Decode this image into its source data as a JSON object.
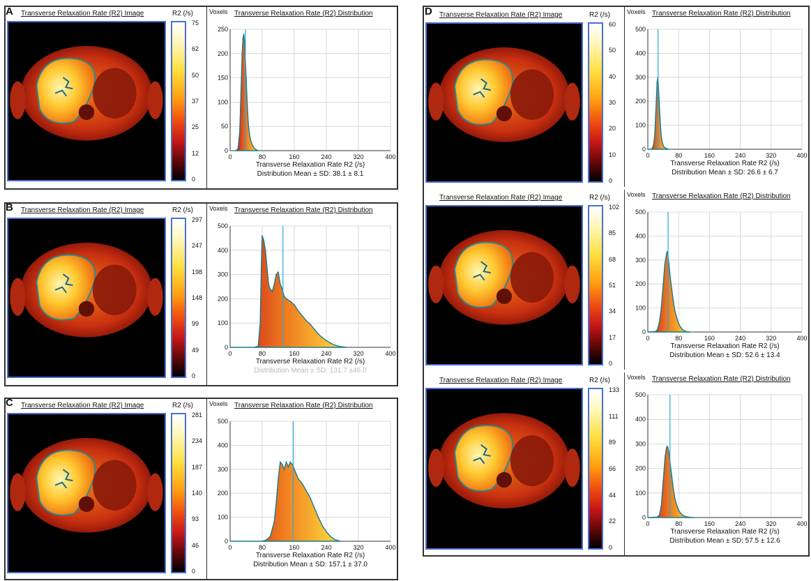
{
  "figure": {
    "labels": {
      "A": "A",
      "B": "B",
      "C": "C",
      "D": "D"
    },
    "image_title": "Transverse Relaxation Rate (R2) Image",
    "dist_title": "Transverse Relaxation Rate (R2) Distribution",
    "unit_label": "R2 (/s)",
    "voxels_label": "Voxels",
    "xlabel": "Transverse Relaxation Rate R2 (/s)"
  },
  "colors": {
    "mean_line": "#29a8e0",
    "hist_outline": "#1a7a8a",
    "frame_blue": "#4a6fd4"
  },
  "panels": [
    {
      "id": "A",
      "colorbar_ticks": [
        "75",
        "62",
        "50",
        "37",
        "25",
        "12",
        "0"
      ],
      "stat": "Distribution Mean ± SD: 38.1  ± 8.1",
      "stat_faded": false
    },
    {
      "id": "B",
      "colorbar_ticks": [
        "297",
        "247",
        "198",
        "148",
        "99",
        "49",
        "0"
      ],
      "stat": "Distribution Mean ± SD: 131.7 ±46.0",
      "stat_faded": true
    },
    {
      "id": "C",
      "colorbar_ticks": [
        "281",
        "234",
        "187",
        "140",
        "93",
        "46",
        "0"
      ],
      "stat": "Distribution Mean ± SD: 157.1 ± 37.0",
      "stat_faded": false
    },
    {
      "id": "D1",
      "colorbar_ticks": [
        "60",
        "50",
        "40",
        "30",
        "20",
        "10",
        "0"
      ],
      "stat": "Distribution Mean ± SD: 26.6  ± 6.7",
      "stat_faded": false
    },
    {
      "id": "D2",
      "colorbar_ticks": [
        "102",
        "85",
        "68",
        "51",
        "34",
        "17",
        "0"
      ],
      "stat": "Distribution Mean ± SD: 52.6  ± 13.4",
      "stat_faded": false
    },
    {
      "id": "D3",
      "colorbar_ticks": [
        "133",
        "111",
        "89",
        "66",
        "44",
        "22",
        "0"
      ],
      "stat": "Distribution Mean ± SD: 57.5  ± 12.6",
      "stat_faded": false
    }
  ],
  "chart_data": [
    {
      "type": "area",
      "panel": "A",
      "title": "Transverse Relaxation Rate (R2) Distribution",
      "xlabel": "Transverse Relaxation Rate R2 (/s)",
      "ylabel": "Voxels",
      "xlim": [
        0,
        400
      ],
      "ylim": [
        0,
        250
      ],
      "x_ticks": [
        0,
        80,
        160,
        240,
        320,
        400
      ],
      "y_ticks": [
        0,
        50,
        100,
        150,
        200,
        250
      ],
      "mean": 38.1,
      "sd": 8.1,
      "x": [
        15,
        20,
        24,
        27,
        30,
        32,
        34,
        36,
        38,
        40,
        42,
        44,
        46,
        50,
        55,
        60,
        65,
        70
      ],
      "y": [
        0,
        5,
        40,
        120,
        200,
        230,
        240,
        225,
        190,
        150,
        110,
        75,
        50,
        25,
        12,
        5,
        2,
        0
      ]
    },
    {
      "type": "area",
      "panel": "B",
      "title": "Transverse Relaxation Rate (R2) Distribution",
      "xlabel": "Transverse Relaxation Rate R2 (/s)",
      "ylabel": "Voxels",
      "xlim": [
        0,
        400
      ],
      "ylim": [
        0,
        500
      ],
      "x_ticks": [
        0,
        80,
        160,
        240,
        320,
        400
      ],
      "y_ticks": [
        0,
        100,
        200,
        300,
        400,
        500
      ],
      "mean": 131.7,
      "sd": 46.0,
      "x": [
        0,
        60,
        70,
        75,
        78,
        80,
        84,
        88,
        92,
        96,
        100,
        105,
        110,
        115,
        120,
        125,
        130,
        135,
        140,
        150,
        160,
        170,
        180,
        190,
        200,
        210,
        220,
        230,
        240,
        250,
        260,
        270,
        280,
        290
      ],
      "y": [
        0,
        0,
        5,
        100,
        350,
        460,
        440,
        400,
        330,
        260,
        240,
        230,
        260,
        300,
        310,
        260,
        240,
        210,
        200,
        190,
        175,
        150,
        130,
        110,
        95,
        75,
        55,
        40,
        28,
        18,
        10,
        5,
        2,
        0
      ]
    },
    {
      "type": "area",
      "panel": "C",
      "title": "Transverse Relaxation Rate (R2) Distribution",
      "xlabel": "Transverse Relaxation Rate R2 (/s)",
      "ylabel": "Voxels",
      "xlim": [
        0,
        400
      ],
      "ylim": [
        0,
        500
      ],
      "x_ticks": [
        0,
        80,
        160,
        240,
        320,
        400
      ],
      "y_ticks": [
        0,
        100,
        200,
        300,
        400,
        500
      ],
      "mean": 157.1,
      "sd": 37.0,
      "x": [
        0,
        80,
        90,
        100,
        110,
        115,
        120,
        125,
        130,
        135,
        140,
        145,
        150,
        155,
        160,
        165,
        170,
        180,
        190,
        200,
        210,
        220,
        230,
        240,
        250,
        260,
        270,
        275
      ],
      "y": [
        0,
        0,
        5,
        20,
        80,
        160,
        260,
        330,
        320,
        300,
        330,
        310,
        330,
        320,
        300,
        280,
        260,
        240,
        210,
        180,
        140,
        100,
        65,
        40,
        20,
        8,
        2,
        0
      ]
    },
    {
      "type": "area",
      "panel": "D1",
      "title": "Transverse Relaxation Rate (R2) Distribution",
      "xlabel": "Transverse Relaxation Rate R2 (/s)",
      "ylabel": "Voxels",
      "xlim": [
        0,
        400
      ],
      "ylim": [
        0,
        500
      ],
      "x_ticks": [
        0,
        80,
        160,
        240,
        320,
        400
      ],
      "y_ticks": [
        0,
        100,
        200,
        300,
        400,
        500
      ],
      "mean": 26.6,
      "sd": 6.7,
      "x": [
        0,
        8,
        12,
        15,
        18,
        20,
        22,
        24,
        26,
        28,
        30,
        32,
        34,
        36,
        40,
        44,
        50,
        55
      ],
      "y": [
        0,
        0,
        5,
        20,
        60,
        130,
        200,
        280,
        300,
        250,
        180,
        120,
        70,
        40,
        15,
        6,
        2,
        0
      ]
    },
    {
      "type": "area",
      "panel": "D2",
      "title": "Transverse Relaxation Rate (R2) Distribution",
      "xlabel": "Transverse Relaxation Rate R2 (/s)",
      "ylabel": "Voxels",
      "xlim": [
        0,
        400
      ],
      "ylim": [
        0,
        500
      ],
      "x_ticks": [
        0,
        80,
        160,
        240,
        320,
        400
      ],
      "y_ticks": [
        0,
        100,
        200,
        300,
        400,
        500
      ],
      "mean": 52.6,
      "sd": 13.4,
      "x": [
        0,
        20,
        25,
        30,
        35,
        40,
        44,
        48,
        50,
        52,
        55,
        58,
        62,
        66,
        70,
        75,
        80,
        85,
        90,
        95,
        100,
        110
      ],
      "y": [
        0,
        2,
        10,
        40,
        100,
        200,
        280,
        320,
        335,
        320,
        280,
        230,
        180,
        130,
        90,
        60,
        35,
        20,
        10,
        5,
        2,
        0
      ]
    },
    {
      "type": "area",
      "panel": "D3",
      "title": "Transverse Relaxation Rate (R2) Distribution",
      "xlabel": "Transverse Relaxation Rate R2 (/s)",
      "ylabel": "Voxels",
      "xlim": [
        0,
        400
      ],
      "ylim": [
        0,
        500
      ],
      "x_ticks": [
        0,
        80,
        160,
        240,
        320,
        400
      ],
      "y_ticks": [
        0,
        100,
        200,
        300,
        400,
        500
      ],
      "mean": 57.5,
      "sd": 12.6,
      "x": [
        0,
        25,
        30,
        35,
        40,
        45,
        48,
        50,
        52,
        54,
        56,
        58,
        62,
        66,
        70,
        75,
        80,
        85,
        90,
        95,
        100,
        110,
        120
      ],
      "y": [
        0,
        2,
        10,
        50,
        150,
        250,
        280,
        290,
        285,
        270,
        250,
        220,
        170,
        120,
        80,
        50,
        30,
        18,
        10,
        6,
        3,
        1,
        0
      ]
    }
  ]
}
